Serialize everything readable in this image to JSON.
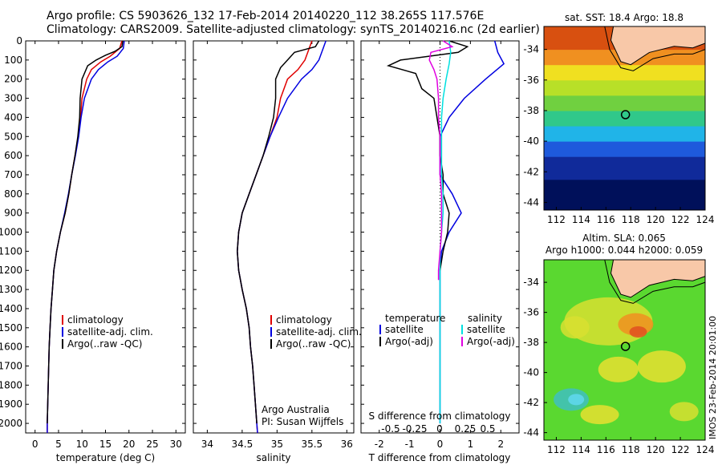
{
  "header": {
    "line1": "Argo profile: CS 5903626_132 17-Feb-2014 20140220_112 38.265S 117.576E",
    "line2": "Climatology: CARS2009. Satellite-adjusted climatology: synTS_20140216.nc (2d earlier)"
  },
  "colors": {
    "climatology": "#e00000",
    "satellite": "#0000e0",
    "argo": "#000000",
    "s_satellite": "#00e0e0",
    "s_argo": "#e000e0",
    "land": "#f8c8a8"
  },
  "depth_ticks": [
    "0",
    "100",
    "200",
    "300",
    "400",
    "500",
    "600",
    "700",
    "800",
    "900",
    "1000",
    "1100",
    "1200",
    "1300",
    "1400",
    "1500",
    "1600",
    "1700",
    "1800",
    "1900",
    "2000"
  ],
  "panel_temperature": {
    "xlabel": "temperature (deg C)",
    "xticks": [
      "0",
      "5",
      "10",
      "15",
      "20",
      "25",
      "30"
    ],
    "legend": [
      "climatology",
      "satellite-adj. clim.",
      "Argo(..raw -QC)"
    ]
  },
  "panel_salinity": {
    "xlabel": "salinity",
    "xticks": [
      "34",
      "34.5",
      "35",
      "35.5",
      "36"
    ],
    "legend": [
      "climatology",
      "satellite-adj. clim.",
      "Argo(..raw -QC)"
    ],
    "note1": "Argo Australia",
    "note2": "PI: Susan Wijffels"
  },
  "panel_difference": {
    "legend_t_title": "temperature",
    "legend_s_title": "salinity",
    "legend_items": [
      "satellite",
      "Argo(-adj)",
      "satellite",
      "Argo(-adj)"
    ],
    "s_axis_label": "S difference from climatology",
    "s_ticks": [
      "-0.5",
      "-0.25",
      "0",
      "0.25",
      "0.5"
    ],
    "t_axis_label": "T difference from climatology",
    "t_ticks": [
      "-2",
      "-1",
      "0",
      "1",
      "2"
    ]
  },
  "map_sst": {
    "title": "sat. SST: 18.4  Argo: 18.8",
    "lat_ticks": [
      "-34",
      "-36",
      "-38",
      "-40",
      "-42",
      "-44"
    ],
    "lon_ticks": [
      "112",
      "114",
      "116",
      "118",
      "120",
      "122",
      "124"
    ]
  },
  "map_sla": {
    "title1": "Altim. SLA: 0.065",
    "title2": "Argo h1000: 0.044 h2000: 0.059",
    "lat_ticks": [
      "-34",
      "-36",
      "-38",
      "-40",
      "-42",
      "-44"
    ],
    "lon_ticks": [
      "112",
      "114",
      "116",
      "118",
      "120",
      "122",
      "124"
    ]
  },
  "footer": {
    "credit": "IMOS 23-Feb-2014 20:01:00"
  },
  "chart_data": [
    {
      "type": "line",
      "xlabel": "temperature (deg C)",
      "ylabel": "",
      "xlim": [
        -2,
        32
      ],
      "ylim": [
        2050,
        0
      ],
      "series": [
        {
          "name": "climatology",
          "points": [
            [
              18.5,
              0
            ],
            [
              18,
              40
            ],
            [
              16,
              80
            ],
            [
              14,
              110
            ],
            [
              12,
              150
            ],
            [
              11,
              200
            ],
            [
              10,
              300
            ],
            [
              9.7,
              400
            ],
            [
              9.2,
              500
            ],
            [
              8.5,
              600
            ],
            [
              7.8,
              700
            ],
            [
              7.2,
              800
            ],
            [
              6.4,
              900
            ],
            [
              5.4,
              1000
            ],
            [
              4.6,
              1100
            ],
            [
              4,
              1200
            ],
            [
              3.7,
              1300
            ],
            [
              3.4,
              1400
            ],
            [
              3.2,
              1500
            ],
            [
              3,
              1600
            ],
            [
              2.9,
              1700
            ],
            [
              2.8,
              1800
            ],
            [
              2.7,
              1900
            ],
            [
              2.6,
              2000
            ],
            [
              2.6,
              2050
            ]
          ]
        },
        {
          "name": "satellite-adj. clim.",
          "points": [
            [
              19,
              0
            ],
            [
              18.8,
              40
            ],
            [
              17.5,
              80
            ],
            [
              15.5,
              110
            ],
            [
              13.5,
              150
            ],
            [
              12,
              200
            ],
            [
              10.5,
              300
            ],
            [
              9.8,
              400
            ],
            [
              9.3,
              500
            ],
            [
              8.6,
              600
            ],
            [
              7.8,
              700
            ],
            [
              7.1,
              800
            ],
            [
              6.3,
              900
            ],
            [
              5.4,
              1000
            ],
            [
              4.6,
              1100
            ],
            [
              4,
              1200
            ],
            [
              3.7,
              1300
            ],
            [
              3.4,
              1400
            ],
            [
              3.2,
              1500
            ],
            [
              3,
              1600
            ],
            [
              2.9,
              1700
            ],
            [
              2.8,
              1800
            ],
            [
              2.7,
              1900
            ],
            [
              2.6,
              2000
            ],
            [
              2.6,
              2050
            ]
          ]
        },
        {
          "name": "Argo(..raw -QC)",
          "points": [
            [
              18.7,
              0
            ],
            [
              18.5,
              30
            ],
            [
              17,
              55
            ],
            [
              15,
              75
            ],
            [
              13,
              100
            ],
            [
              11.2,
              130
            ],
            [
              10,
              200
            ],
            [
              9.6,
              300
            ],
            [
              9.5,
              400
            ],
            [
              9.1,
              500
            ],
            [
              8.5,
              600
            ],
            [
              7.8,
              700
            ],
            [
              7.2,
              800
            ],
            [
              6.4,
              900
            ],
            [
              5.4,
              1000
            ],
            [
              4.6,
              1100
            ],
            [
              4,
              1200
            ],
            [
              3.7,
              1300
            ],
            [
              3.4,
              1400
            ],
            [
              3.2,
              1500
            ],
            [
              3,
              1600
            ],
            [
              2.9,
              1700
            ],
            [
              2.8,
              1800
            ],
            [
              2.7,
              1900
            ],
            [
              2.6,
              2000
            ]
          ]
        }
      ]
    },
    {
      "type": "line",
      "xlabel": "salinity",
      "ylabel": "",
      "xlim": [
        33.8,
        36.1
      ],
      "ylim": [
        2050,
        0
      ],
      "series": [
        {
          "name": "climatology",
          "points": [
            [
              35.5,
              0
            ],
            [
              35.45,
              50
            ],
            [
              35.4,
              100
            ],
            [
              35.3,
              150
            ],
            [
              35.15,
              200
            ],
            [
              35.05,
              300
            ],
            [
              35,
              400
            ],
            [
              34.9,
              500
            ],
            [
              34.8,
              600
            ],
            [
              34.7,
              700
            ],
            [
              34.6,
              800
            ],
            [
              34.5,
              900
            ],
            [
              34.45,
              1000
            ],
            [
              34.43,
              1100
            ],
            [
              34.45,
              1200
            ],
            [
              34.5,
              1300
            ],
            [
              34.56,
              1400
            ],
            [
              34.6,
              1500
            ],
            [
              34.62,
              1600
            ],
            [
              34.65,
              1700
            ],
            [
              34.67,
              1800
            ],
            [
              34.69,
              1900
            ],
            [
              34.71,
              2000
            ],
            [
              34.72,
              2050
            ]
          ]
        },
        {
          "name": "satellite-adj. clim.",
          "points": [
            [
              35.7,
              0
            ],
            [
              35.65,
              50
            ],
            [
              35.6,
              100
            ],
            [
              35.5,
              150
            ],
            [
              35.35,
              200
            ],
            [
              35.15,
              300
            ],
            [
              35.02,
              400
            ],
            [
              34.9,
              500
            ],
            [
              34.8,
              600
            ],
            [
              34.7,
              700
            ],
            [
              34.6,
              800
            ],
            [
              34.5,
              900
            ],
            [
              34.45,
              1000
            ],
            [
              34.43,
              1100
            ],
            [
              34.45,
              1200
            ],
            [
              34.5,
              1300
            ],
            [
              34.56,
              1400
            ],
            [
              34.6,
              1500
            ],
            [
              34.62,
              1600
            ],
            [
              34.65,
              1700
            ],
            [
              34.67,
              1800
            ],
            [
              34.69,
              1900
            ],
            [
              34.71,
              2000
            ],
            [
              34.72,
              2050
            ]
          ]
        },
        {
          "name": "Argo(..raw -QC)",
          "points": [
            [
              35.6,
              0
            ],
            [
              35.55,
              30
            ],
            [
              35.25,
              60
            ],
            [
              35.15,
              100
            ],
            [
              35.05,
              140
            ],
            [
              34.98,
              200
            ],
            [
              34.98,
              300
            ],
            [
              34.95,
              400
            ],
            [
              34.88,
              500
            ],
            [
              34.8,
              600
            ],
            [
              34.7,
              700
            ],
            [
              34.6,
              800
            ],
            [
              34.5,
              900
            ],
            [
              34.45,
              1000
            ],
            [
              34.43,
              1100
            ],
            [
              34.45,
              1200
            ],
            [
              34.5,
              1300
            ],
            [
              34.56,
              1400
            ],
            [
              34.6,
              1500
            ],
            [
              34.62,
              1600
            ],
            [
              34.65,
              1700
            ],
            [
              34.67,
              1800
            ],
            [
              34.69,
              1900
            ],
            [
              34.71,
              2000
            ]
          ]
        }
      ]
    },
    {
      "type": "line",
      "xlabel": "T difference from climatology",
      "ylabel": "",
      "xlim": [
        -2.6,
        2.6
      ],
      "ylim": [
        2050,
        0
      ],
      "series": [
        {
          "name": "satellite",
          "points": [
            [
              1.8,
              0
            ],
            [
              1.9,
              60
            ],
            [
              2.1,
              120
            ],
            [
              1.5,
              200
            ],
            [
              0.8,
              300
            ],
            [
              0.3,
              400
            ],
            [
              0,
              500
            ],
            [
              0,
              600
            ],
            [
              0,
              700
            ],
            [
              0.4,
              800
            ],
            [
              0.7,
              900
            ],
            [
              0.3,
              1000
            ],
            [
              0.05,
              1100
            ],
            [
              0,
              1200
            ],
            [
              0,
              1400
            ],
            [
              0,
              1600
            ],
            [
              0,
              1800
            ],
            [
              0,
              2000
            ]
          ]
        },
        {
          "name": "Argo(-adj)",
          "points": [
            [
              0.3,
              0
            ],
            [
              0.9,
              30
            ],
            [
              0.6,
              60
            ],
            [
              -1.3,
              100
            ],
            [
              -1.7,
              130
            ],
            [
              -0.8,
              170
            ],
            [
              -0.6,
              250
            ],
            [
              -0.2,
              300
            ],
            [
              -0.1,
              400
            ],
            [
              0,
              500
            ],
            [
              0,
              600
            ],
            [
              0.1,
              700
            ],
            [
              0.1,
              800
            ],
            [
              0.3,
              900
            ],
            [
              0.25,
              1000
            ],
            [
              0.1,
              1100
            ],
            [
              0,
              1200
            ]
          ]
        },
        {
          "name": "satellite",
          "points": [
            [
              0.3,
              0
            ],
            [
              0.35,
              60
            ],
            [
              0.3,
              120
            ],
            [
              0.2,
              200
            ],
            [
              0.1,
              300
            ],
            [
              0.05,
              400
            ],
            [
              0.05,
              500
            ],
            [
              0.05,
              600
            ],
            [
              0.05,
              700
            ],
            [
              0.1,
              800
            ],
            [
              0.1,
              900
            ],
            [
              0.05,
              1000
            ],
            [
              0,
              1100
            ],
            [
              0,
              1200
            ],
            [
              0,
              1400
            ],
            [
              0,
              1600
            ],
            [
              0,
              1800
            ],
            [
              0,
              2000
            ]
          ]
        },
        {
          "name": "Argo(-adj)",
          "points": [
            [
              0.1,
              0
            ],
            [
              0.4,
              30
            ],
            [
              -0.3,
              60
            ],
            [
              -0.35,
              100
            ],
            [
              -0.2,
              150
            ],
            [
              -0.1,
              200
            ],
            [
              -0.05,
              300
            ],
            [
              -0.05,
              400
            ],
            [
              0,
              500
            ],
            [
              0,
              600
            ],
            [
              0,
              700
            ],
            [
              0.05,
              800
            ],
            [
              0.05,
              900
            ],
            [
              0.05,
              1000
            ],
            [
              0,
              1100
            ],
            [
              -0.05,
              1200
            ],
            [
              -0.05,
              1250
            ]
          ]
        }
      ]
    },
    {
      "type": "heatmap",
      "title": "sat. SST: 18.4  Argo: 18.8",
      "xlabel": "",
      "ylabel": "",
      "xlim": [
        111,
        124
      ],
      "ylim": [
        -44.5,
        -32.5
      ],
      "argo_position": [
        117.576,
        -38.265
      ]
    },
    {
      "type": "heatmap",
      "title": "Altim. SLA: 0.065",
      "xlabel": "",
      "ylabel": "",
      "xlim": [
        111,
        124
      ],
      "ylim": [
        -44.5,
        -32.5
      ],
      "argo_position": [
        117.576,
        -38.265
      ]
    }
  ]
}
